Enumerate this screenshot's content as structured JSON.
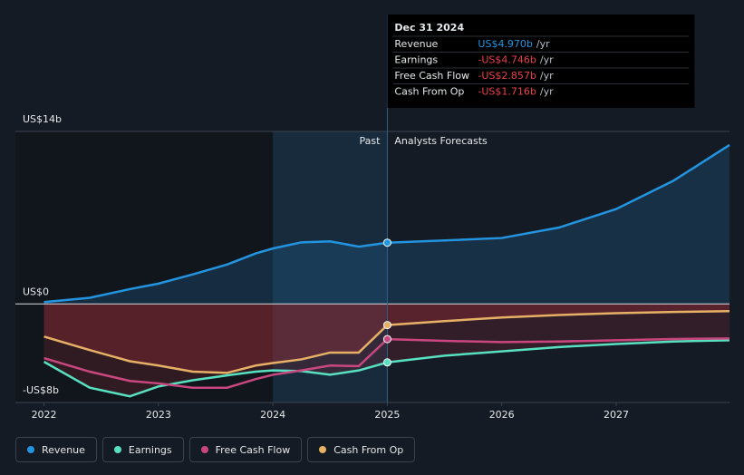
{
  "chart_data": {
    "type": "line",
    "x": [
      2022,
      2022.4,
      2022.75,
      2023,
      2023.3,
      2023.6,
      2023.85,
      2024,
      2024.25,
      2024.5,
      2024.75,
      2025,
      2025.5,
      2026,
      2026.5,
      2027,
      2027.5,
      2027.99
    ],
    "xlim": [
      2021.75,
      2027.99
    ],
    "xticks": [
      2022,
      2023,
      2024,
      2025,
      2026,
      2027
    ],
    "ylim": [
      -8,
      14
    ],
    "yticks": [
      {
        "value": 14,
        "label": "US$14b"
      },
      {
        "value": 0,
        "label": "US$0"
      },
      {
        "value": -8,
        "label": "-US$8b"
      }
    ],
    "series": [
      {
        "name": "Revenue",
        "color": "#2394df",
        "values": [
          0.15,
          0.5,
          1.2,
          1.65,
          2.4,
          3.2,
          4.1,
          4.5,
          5.0,
          5.08,
          4.65,
          4.97,
          5.15,
          5.35,
          6.2,
          7.7,
          10.0,
          12.9
        ]
      },
      {
        "name": "Earnings",
        "color": "#58e1c1",
        "values": [
          -4.7,
          -6.8,
          -7.5,
          -6.7,
          -6.2,
          -5.8,
          -5.5,
          -5.4,
          -5.45,
          -5.75,
          -5.4,
          -4.746,
          -4.2,
          -3.85,
          -3.5,
          -3.25,
          -3.05,
          -2.95
        ]
      },
      {
        "name": "Free Cash Flow",
        "color": "#c9477f",
        "values": [
          -4.4,
          -5.5,
          -6.25,
          -6.45,
          -6.8,
          -6.8,
          -6.1,
          -5.75,
          -5.4,
          -5.0,
          -5.05,
          -2.857,
          -3.0,
          -3.1,
          -3.05,
          -2.95,
          -2.85,
          -2.8
        ]
      },
      {
        "name": "Cash From Op",
        "color": "#e6b066",
        "values": [
          -2.65,
          -3.75,
          -4.65,
          -5.0,
          -5.5,
          -5.6,
          -5.0,
          -4.8,
          -4.5,
          -3.95,
          -3.95,
          -1.716,
          -1.4,
          -1.1,
          -0.9,
          -0.75,
          -0.65,
          -0.59
        ]
      }
    ],
    "divider_x": 2025,
    "past_start_x": 2024,
    "annotations": {
      "past": "Past",
      "forecast": "Analysts Forecasts"
    },
    "tooltip": {
      "title": "Dec 31 2024",
      "rows": [
        {
          "name": "Revenue",
          "value_label": "US$4.970b",
          "unit": "/yr",
          "color": "#2394df"
        },
        {
          "name": "Earnings",
          "value_label": "-US$4.746b",
          "unit": "/yr",
          "color": "#e8414a"
        },
        {
          "name": "Free Cash Flow",
          "value_label": "-US$2.857b",
          "unit": "/yr",
          "color": "#e8414a"
        },
        {
          "name": "Cash From Op",
          "value_label": "-US$1.716b",
          "unit": "/yr",
          "color": "#e8414a"
        }
      ]
    }
  }
}
